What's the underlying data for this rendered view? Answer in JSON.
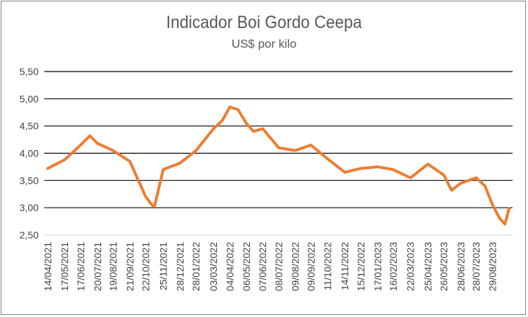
{
  "chart_data": {
    "type": "line",
    "title": "Indicador Boi Gordo Ceepa",
    "subtitle": "US$ por kilo",
    "xlabel": "",
    "ylabel": "",
    "ylim": [
      2.5,
      5.5
    ],
    "yticks": [
      "2,50",
      "3,00",
      "3,50",
      "4,00",
      "4,50",
      "5,00",
      "5,50"
    ],
    "xticks": [
      "14/04/2021",
      "17/05/2021",
      "17/06/2021",
      "20/07/2021",
      "19/08/2021",
      "21/09/2021",
      "22/10/2021",
      "25/11/2021",
      "28/12/2021",
      "28/01/2022",
      "03/03/2022",
      "04/04/2022",
      "06/05/2022",
      "07/06/2022",
      "08/07/2022",
      "09/08/2022",
      "09/09/2022",
      "11/10/2022",
      "14/11/2022",
      "15/12/2022",
      "17/01/2023",
      "16/02/2023",
      "22/03/2023",
      "25/04/2023",
      "26/05/2023",
      "28/06/2023",
      "28/07/2023",
      "29/08/2023"
    ],
    "grid": true,
    "legend": "none",
    "line_color": "#ed7d31",
    "series": [
      {
        "x": [
          "14/04/2021",
          "17/05/2021",
          "17/06/2021",
          "05/07/2021",
          "20/07/2021",
          "19/08/2021",
          "21/09/2021",
          "22/10/2021",
          "03/11/2021",
          "08/11/2021",
          "25/11/2021",
          "28/12/2021",
          "28/01/2022",
          "03/03/2022",
          "20/03/2022",
          "04/04/2022",
          "20/04/2022",
          "06/05/2022",
          "20/05/2022",
          "07/06/2022",
          "08/07/2022",
          "09/08/2022",
          "09/09/2022",
          "11/10/2022",
          "14/11/2022",
          "15/12/2022",
          "17/01/2023",
          "16/02/2023",
          "22/03/2023",
          "25/04/2023",
          "26/05/2023",
          "10/06/2023",
          "28/06/2023",
          "28/07/2023",
          "14/08/2023",
          "29/08/2023",
          "12/09/2023",
          "22/09/2023",
          "30/09/2023"
        ],
        "values": [
          3.72,
          3.88,
          4.15,
          4.32,
          4.18,
          4.05,
          3.85,
          3.2,
          3.05,
          3.02,
          3.7,
          3.82,
          4.05,
          4.45,
          4.6,
          4.85,
          4.8,
          4.55,
          4.4,
          4.45,
          4.1,
          4.05,
          4.15,
          3.9,
          3.65,
          3.72,
          3.75,
          3.7,
          3.55,
          3.8,
          3.6,
          3.32,
          3.45,
          3.55,
          3.4,
          3.05,
          2.8,
          2.7,
          2.98
        ]
      }
    ]
  }
}
